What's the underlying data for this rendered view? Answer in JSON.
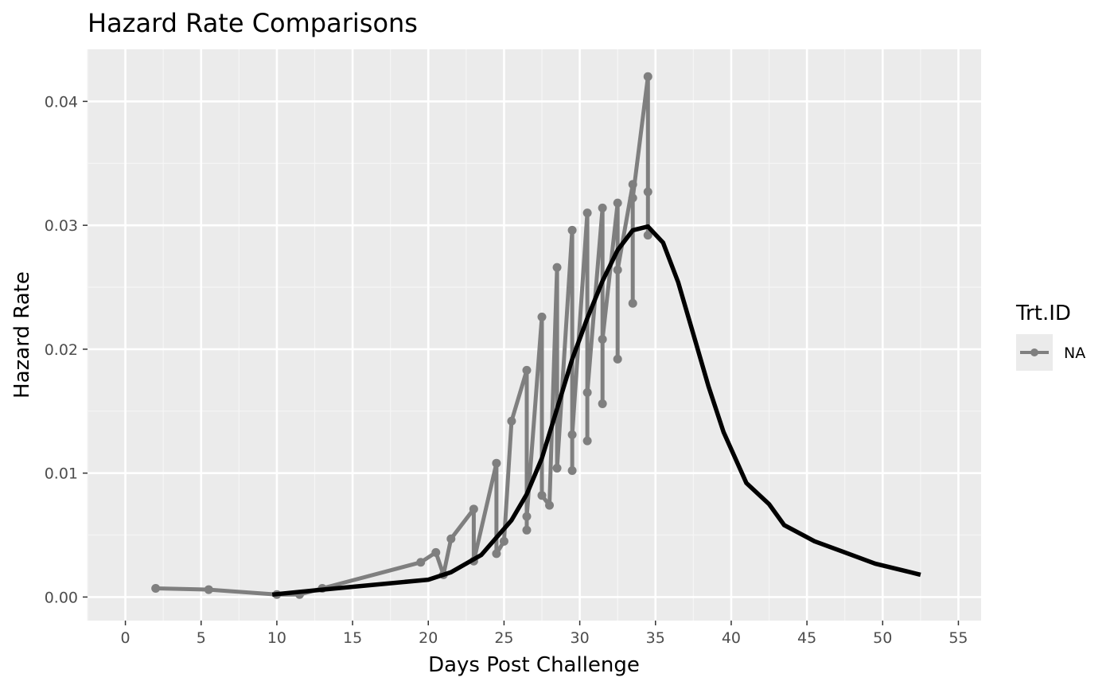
{
  "chart_data": {
    "type": "line",
    "title": "Hazard Rate Comparisons",
    "xlabel": "Days Post Challenge",
    "ylabel": "Hazard Rate",
    "xlim": [
      -2.5,
      56.5
    ],
    "ylim": [
      -0.0019,
      0.0442
    ],
    "x_ticks": [
      0,
      5,
      10,
      15,
      20,
      25,
      30,
      35,
      40,
      45,
      50,
      55
    ],
    "y_ticks": [
      0.0,
      0.01,
      0.02,
      0.03,
      0.04
    ],
    "x_tick_labels": [
      "0",
      "5",
      "10",
      "15",
      "20",
      "25",
      "30",
      "35",
      "40",
      "45",
      "50",
      "55"
    ],
    "y_tick_labels": [
      "0.00",
      "0.01",
      "0.02",
      "0.03",
      "0.04"
    ],
    "grid": true,
    "legend": {
      "title": "Trt.ID",
      "position": "right",
      "entries": [
        "NA"
      ]
    },
    "series": [
      {
        "name": "NA",
        "style": "line+points",
        "color": "#7f7f7f",
        "x": [
          2,
          5.5,
          10,
          11.5,
          13,
          19.5,
          20.5,
          21,
          21.5,
          23,
          23,
          24.5,
          24.5,
          25,
          25.5,
          26.5,
          26.5,
          26.5,
          27.5,
          27.5,
          28,
          28.5,
          28.5,
          29.5,
          29.5,
          29.5,
          30.5,
          30.5,
          30.5,
          31.5,
          31.5,
          31.5,
          32.5,
          32.5,
          32.5,
          33.5,
          33.5,
          33.5,
          34.5,
          34.5,
          34.5
        ],
        "y": [
          0.0007,
          0.0006,
          0.0002,
          0.0002,
          0.0007,
          0.0028,
          0.0036,
          0.0018,
          0.0047,
          0.0071,
          0.0029,
          0.0108,
          0.0035,
          0.0045,
          0.0142,
          0.0183,
          0.0054,
          0.0065,
          0.0226,
          0.0082,
          0.0074,
          0.0266,
          0.0104,
          0.0296,
          0.0102,
          0.0131,
          0.031,
          0.0126,
          0.0165,
          0.0314,
          0.0156,
          0.0208,
          0.0318,
          0.0192,
          0.0264,
          0.0333,
          0.0237,
          0.0322,
          0.042,
          0.0292,
          0.0327
        ]
      },
      {
        "name": "",
        "style": "line",
        "color": "#000000",
        "x": [
          9.7,
          13,
          20,
          21.5,
          23.5,
          25.5,
          26.5,
          27.5,
          28.5,
          29.5,
          30.5,
          31.5,
          32.5,
          33.5,
          34.5,
          35.5,
          36.5,
          37.5,
          38.5,
          39.5,
          41,
          42.5,
          43.5,
          45.5,
          47.5,
          49.5,
          51.5,
          52.5
        ],
        "y": [
          0.0002,
          0.0006,
          0.0014,
          0.002,
          0.0034,
          0.0062,
          0.0083,
          0.0112,
          0.0152,
          0.0192,
          0.0225,
          0.0255,
          0.028,
          0.0296,
          0.0299,
          0.0286,
          0.0254,
          0.0212,
          0.017,
          0.0133,
          0.0092,
          0.0075,
          0.0058,
          0.0045,
          0.0036,
          0.0027,
          0.0021,
          0.0018
        ]
      }
    ]
  }
}
